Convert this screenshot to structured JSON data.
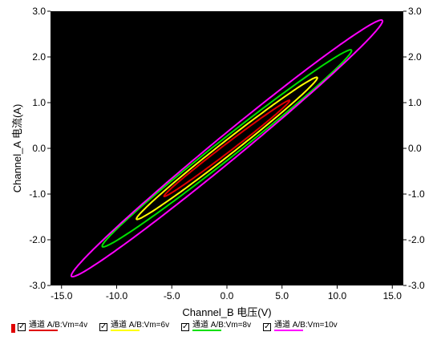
{
  "chart_data": {
    "type": "line",
    "xlabel": "Channel_B 电压(V)",
    "ylabel": "Channel_A 电流(A)",
    "xlim": [
      -16.0,
      16.0
    ],
    "ylim": [
      -3.0,
      3.0
    ],
    "x_ticks": [
      "-15.0",
      "-10.0",
      "-5.0",
      "0.0",
      "5.0",
      "10.0",
      "15.0"
    ],
    "y_ticks": [
      "3.0",
      "2.0",
      "1.0",
      "0.0",
      "-1.0",
      "-2.0",
      "-3.0"
    ],
    "background": "#000000",
    "grid": false,
    "legend_position": "bottom",
    "series": [
      {
        "name": "通道 A/B:Vm=4v",
        "color": "#e00000",
        "peak_x": 5.7,
        "peak_y": 1.05,
        "low_x": -5.7,
        "low_y": -1.05
      },
      {
        "name": "通道 A/B:Vm=6v",
        "color": "#ffff00",
        "peak_x": 8.2,
        "peak_y": 1.55,
        "low_x": -8.2,
        "low_y": -1.55
      },
      {
        "name": "通道 A/B:Vm=8v",
        "color": "#00e000",
        "peak_x": 11.3,
        "peak_y": 2.15,
        "low_x": -11.3,
        "low_y": -2.15
      },
      {
        "name": "通道 A/B:Vm=10v",
        "color": "#ff00ff",
        "peak_x": 14.1,
        "peak_y": 2.8,
        "low_x": -14.1,
        "low_y": -2.8
      }
    ]
  },
  "legend": {
    "check_mark": "✓",
    "items": [
      {
        "label": "通道 A/B:Vm=4v",
        "color": "#e00000"
      },
      {
        "label": "通道 A/B:Vm=6v",
        "color": "#ffff00"
      },
      {
        "label": "通道 A/B:Vm=8v",
        "color": "#00e000"
      },
      {
        "label": "通道 A/B:Vm=10v",
        "color": "#ff00ff"
      }
    ]
  }
}
